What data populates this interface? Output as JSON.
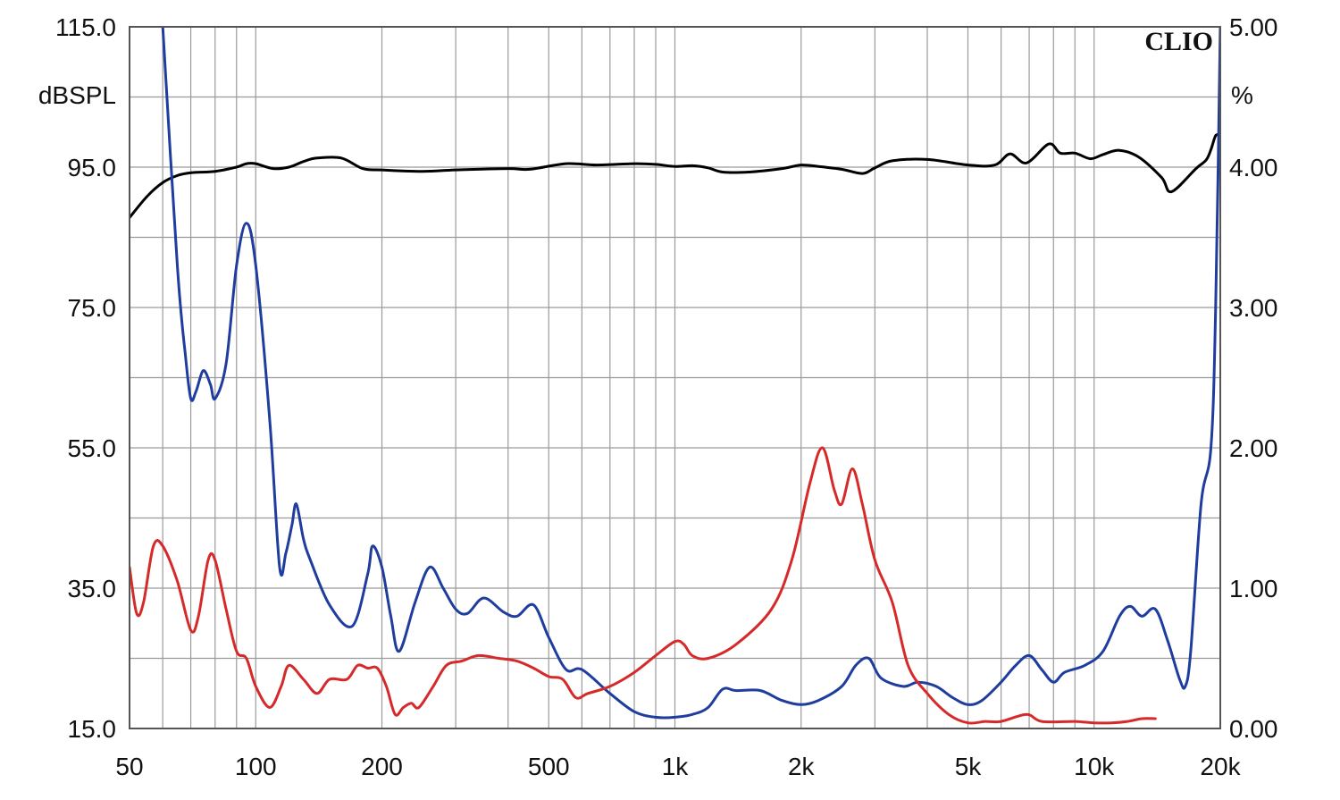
{
  "chart_data": {
    "type": "line",
    "brand_label": "CLIO",
    "x_scale": "log",
    "xlim": [
      50,
      20000
    ],
    "x_ticks": [
      {
        "value": 50,
        "label": "50"
      },
      {
        "value": 100,
        "label": "100"
      },
      {
        "value": 200,
        "label": "200"
      },
      {
        "value": 500,
        "label": "500"
      },
      {
        "value": 1000,
        "label": "1k"
      },
      {
        "value": 2000,
        "label": "2k"
      },
      {
        "value": 5000,
        "label": "5k"
      },
      {
        "value": 10000,
        "label": "10k"
      },
      {
        "value": 20000,
        "label": "20k"
      }
    ],
    "y_left": {
      "unit_label": "dBSPL",
      "ylim": [
        15,
        115
      ],
      "ticks": [
        {
          "value": 115,
          "label": "115.0"
        },
        {
          "value": 95,
          "label": "95.0"
        },
        {
          "value": 75,
          "label": "75.0"
        },
        {
          "value": 55,
          "label": "55.0"
        },
        {
          "value": 35,
          "label": "35.0"
        },
        {
          "value": 15,
          "label": "15.0"
        }
      ]
    },
    "y_right": {
      "unit_label": "%",
      "ylim": [
        0,
        5
      ],
      "ticks": [
        {
          "value": 5,
          "label": "5.00"
        },
        {
          "value": 4,
          "label": "4.00"
        },
        {
          "value": 3,
          "label": "3.00"
        },
        {
          "value": 2,
          "label": "2.00"
        },
        {
          "value": 1,
          "label": "1.00"
        },
        {
          "value": 0,
          "label": "0.00"
        }
      ]
    },
    "grid": true,
    "series": [
      {
        "color": "#000000",
        "axis": "left",
        "points": [
          [
            50,
            87.8
          ],
          [
            55,
            90.8
          ],
          [
            60,
            92.8
          ],
          [
            65,
            93.8
          ],
          [
            70,
            94.2
          ],
          [
            80,
            94.4
          ],
          [
            90,
            95
          ],
          [
            95,
            95.5
          ],
          [
            100,
            95.5
          ],
          [
            110,
            94.8
          ],
          [
            120,
            95
          ],
          [
            130,
            95.8
          ],
          [
            140,
            96.3
          ],
          [
            160,
            96.3
          ],
          [
            180,
            94.8
          ],
          [
            200,
            94.6
          ],
          [
            250,
            94.4
          ],
          [
            300,
            94.6
          ],
          [
            400,
            94.8
          ],
          [
            450,
            94.7
          ],
          [
            550,
            95.5
          ],
          [
            650,
            95.3
          ],
          [
            800,
            95.5
          ],
          [
            900,
            95.4
          ],
          [
            1000,
            95.1
          ],
          [
            1100,
            95.2
          ],
          [
            1200,
            94.9
          ],
          [
            1300,
            94.3
          ],
          [
            1500,
            94.3
          ],
          [
            1800,
            94.8
          ],
          [
            2000,
            95.3
          ],
          [
            2200,
            95.1
          ],
          [
            2500,
            94.7
          ],
          [
            2800,
            94.1
          ],
          [
            3000,
            94.9
          ],
          [
            3300,
            95.9
          ],
          [
            4000,
            96.1
          ],
          [
            5000,
            95.3
          ],
          [
            5800,
            95.3
          ],
          [
            6300,
            96.9
          ],
          [
            6900,
            95.6
          ],
          [
            7800,
            98.3
          ],
          [
            8300,
            97
          ],
          [
            9000,
            97
          ],
          [
            9800,
            96.2
          ],
          [
            10500,
            96.8
          ],
          [
            11500,
            97.4
          ],
          [
            12800,
            96.4
          ],
          [
            14500,
            93.5
          ],
          [
            15300,
            91.5
          ],
          [
            17500,
            94.8
          ],
          [
            18500,
            96
          ],
          [
            19000,
            97.5
          ],
          [
            19500,
            99.5
          ],
          [
            20000,
            99.5
          ]
        ]
      },
      {
        "color": "#1f3d9e",
        "axis": "right",
        "points": [
          [
            60,
            5
          ],
          [
            65,
            3.3
          ],
          [
            68,
            2.65
          ],
          [
            70,
            2.35
          ],
          [
            72,
            2.4
          ],
          [
            75,
            2.55
          ],
          [
            78,
            2.45
          ],
          [
            80,
            2.35
          ],
          [
            85,
            2.6
          ],
          [
            90,
            3.3
          ],
          [
            95,
            3.6
          ],
          [
            100,
            3.3
          ],
          [
            108,
            2.2
          ],
          [
            114,
            1.15
          ],
          [
            118,
            1.25
          ],
          [
            122,
            1.45
          ],
          [
            125,
            1.6
          ],
          [
            130,
            1.35
          ],
          [
            135,
            1.2
          ],
          [
            150,
            0.88
          ],
          [
            170,
            0.73
          ],
          [
            185,
            1.1
          ],
          [
            190,
            1.3
          ],
          [
            200,
            1.15
          ],
          [
            210,
            0.8
          ],
          [
            220,
            0.55
          ],
          [
            240,
            0.9
          ],
          [
            260,
            1.15
          ],
          [
            280,
            1.0
          ],
          [
            300,
            0.85
          ],
          [
            320,
            0.82
          ],
          [
            350,
            0.93
          ],
          [
            390,
            0.83
          ],
          [
            420,
            0.8
          ],
          [
            460,
            0.88
          ],
          [
            500,
            0.65
          ],
          [
            550,
            0.42
          ],
          [
            600,
            0.42
          ],
          [
            700,
            0.25
          ],
          [
            800,
            0.12
          ],
          [
            900,
            0.08
          ],
          [
            1000,
            0.08
          ],
          [
            1100,
            0.1
          ],
          [
            1200,
            0.15
          ],
          [
            1300,
            0.28
          ],
          [
            1400,
            0.27
          ],
          [
            1600,
            0.27
          ],
          [
            1800,
            0.2
          ],
          [
            2000,
            0.17
          ],
          [
            2200,
            0.2
          ],
          [
            2500,
            0.3
          ],
          [
            2700,
            0.45
          ],
          [
            2900,
            0.5
          ],
          [
            3100,
            0.36
          ],
          [
            3500,
            0.3
          ],
          [
            3800,
            0.33
          ],
          [
            4200,
            0.3
          ],
          [
            4600,
            0.22
          ],
          [
            5000,
            0.17
          ],
          [
            5400,
            0.2
          ],
          [
            6000,
            0.33
          ],
          [
            6500,
            0.45
          ],
          [
            7000,
            0.52
          ],
          [
            7500,
            0.42
          ],
          [
            8000,
            0.33
          ],
          [
            8500,
            0.4
          ],
          [
            9500,
            0.45
          ],
          [
            10500,
            0.55
          ],
          [
            11500,
            0.8
          ],
          [
            12200,
            0.87
          ],
          [
            13000,
            0.8
          ],
          [
            14000,
            0.85
          ],
          [
            15000,
            0.62
          ],
          [
            16000,
            0.35
          ],
          [
            16500,
            0.3
          ],
          [
            17000,
            0.55
          ],
          [
            18000,
            1.6
          ],
          [
            19000,
            2.0
          ],
          [
            19500,
            3.0
          ],
          [
            20000,
            5.0
          ]
        ]
      },
      {
        "color": "#d62a2a",
        "axis": "right",
        "points": [
          [
            50,
            1.15
          ],
          [
            52,
            0.82
          ],
          [
            54,
            0.9
          ],
          [
            57,
            1.3
          ],
          [
            60,
            1.3
          ],
          [
            65,
            1.05
          ],
          [
            70,
            0.7
          ],
          [
            73,
            0.8
          ],
          [
            77,
            1.2
          ],
          [
            80,
            1.2
          ],
          [
            85,
            0.85
          ],
          [
            90,
            0.55
          ],
          [
            95,
            0.5
          ],
          [
            100,
            0.3
          ],
          [
            108,
            0.15
          ],
          [
            115,
            0.3
          ],
          [
            120,
            0.45
          ],
          [
            130,
            0.35
          ],
          [
            140,
            0.25
          ],
          [
            150,
            0.35
          ],
          [
            165,
            0.35
          ],
          [
            175,
            0.45
          ],
          [
            185,
            0.43
          ],
          [
            195,
            0.43
          ],
          [
            205,
            0.3
          ],
          [
            215,
            0.1
          ],
          [
            225,
            0.15
          ],
          [
            235,
            0.18
          ],
          [
            245,
            0.15
          ],
          [
            265,
            0.3
          ],
          [
            285,
            0.45
          ],
          [
            310,
            0.48
          ],
          [
            340,
            0.52
          ],
          [
            380,
            0.5
          ],
          [
            420,
            0.48
          ],
          [
            460,
            0.43
          ],
          [
            500,
            0.37
          ],
          [
            540,
            0.35
          ],
          [
            580,
            0.22
          ],
          [
            620,
            0.25
          ],
          [
            700,
            0.3
          ],
          [
            800,
            0.4
          ],
          [
            900,
            0.52
          ],
          [
            1000,
            0.62
          ],
          [
            1050,
            0.6
          ],
          [
            1100,
            0.52
          ],
          [
            1200,
            0.5
          ],
          [
            1400,
            0.6
          ],
          [
            1700,
            0.85
          ],
          [
            1900,
            1.2
          ],
          [
            2100,
            1.75
          ],
          [
            2250,
            2.0
          ],
          [
            2400,
            1.7
          ],
          [
            2500,
            1.6
          ],
          [
            2650,
            1.85
          ],
          [
            2800,
            1.6
          ],
          [
            3000,
            1.2
          ],
          [
            3300,
            0.9
          ],
          [
            3600,
            0.45
          ],
          [
            4000,
            0.25
          ],
          [
            4500,
            0.1
          ],
          [
            5000,
            0.04
          ],
          [
            5500,
            0.05
          ],
          [
            6000,
            0.05
          ],
          [
            6900,
            0.1
          ],
          [
            7500,
            0.05
          ],
          [
            9000,
            0.05
          ],
          [
            10000,
            0.04
          ],
          [
            11000,
            0.04
          ],
          [
            12000,
            0.05
          ],
          [
            13000,
            0.07
          ],
          [
            14000,
            0.07
          ]
        ]
      }
    ]
  }
}
